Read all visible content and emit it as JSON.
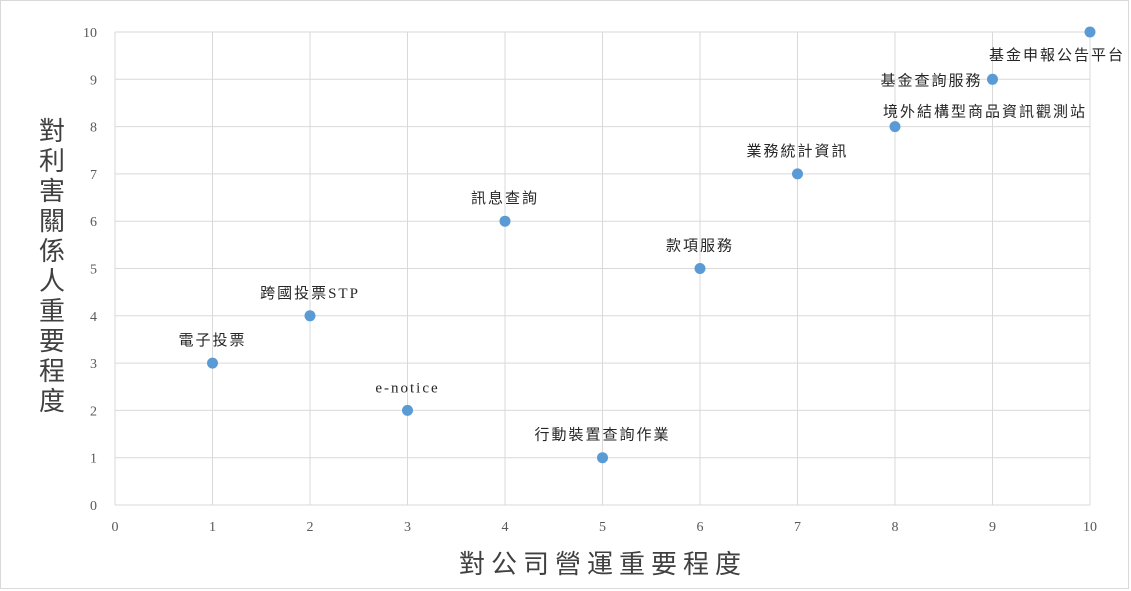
{
  "chart_data": {
    "type": "scatter",
    "xlabel": "對公司營運重要程度",
    "ylabel": "對利害關係人重要程度",
    "xlim": [
      0,
      10
    ],
    "ylim": [
      0,
      10
    ],
    "xticks": [
      "0",
      "1",
      "2",
      "3",
      "4",
      "5",
      "6",
      "7",
      "8",
      "9",
      "10"
    ],
    "yticks": [
      "0",
      "1",
      "2",
      "3",
      "4",
      "5",
      "6",
      "7",
      "8",
      "9",
      "10"
    ],
    "grid": true,
    "marker_color": "#5b9bd5",
    "points": [
      {
        "x": 1,
        "y": 3,
        "label": "電子投票"
      },
      {
        "x": 2,
        "y": 4,
        "label": "跨國投票STP"
      },
      {
        "x": 3,
        "y": 2,
        "label": "e-notice"
      },
      {
        "x": 4,
        "y": 6,
        "label": "訊息查詢"
      },
      {
        "x": 5,
        "y": 1,
        "label": "行動裝置查詢作業"
      },
      {
        "x": 6,
        "y": 5,
        "label": "款項服務"
      },
      {
        "x": 7,
        "y": 7,
        "label": "業務統計資訊"
      },
      {
        "x": 8,
        "y": 8,
        "label": "境外結構型商品資訊觀測站"
      },
      {
        "x": 9,
        "y": 9,
        "label": "基金查詢服務"
      },
      {
        "x": 10,
        "y": 10,
        "label": "基金申報公告平台"
      }
    ]
  }
}
